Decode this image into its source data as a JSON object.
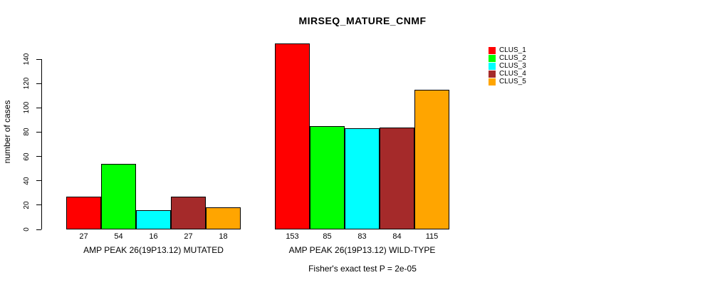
{
  "title": "MIRSEQ_MATURE_CNMF",
  "footer": "Fisher's exact test P = 2e-05",
  "y_axis": {
    "label": "number of cases",
    "ticks": [
      0,
      20,
      40,
      60,
      80,
      100,
      120,
      140
    ]
  },
  "legend": {
    "entries": [
      {
        "label": "CLUS_1",
        "color": "#ff0000"
      },
      {
        "label": "CLUS_2",
        "color": "#00ff00"
      },
      {
        "label": "CLUS_3",
        "color": "#00ffff"
      },
      {
        "label": "CLUS_4",
        "color": "#a52a2a"
      },
      {
        "label": "CLUS_5",
        "color": "#ffa500"
      }
    ]
  },
  "chart_data": {
    "type": "bar",
    "title": "MIRSEQ_MATURE_CNMF",
    "xlabel": "",
    "ylabel": "number of cases",
    "ylim": [
      0,
      140
    ],
    "yticks": [
      0,
      20,
      40,
      60,
      80,
      100,
      120,
      140
    ],
    "grid": false,
    "legend_position": "topright",
    "bar_value_labels_shown": true,
    "categories": [
      "AMP PEAK 26(19P13.12) MUTATED",
      "AMP PEAK 26(19P13.12) WILD-TYPE"
    ],
    "series": [
      {
        "name": "CLUS_1",
        "color": "#ff0000",
        "values": [
          27,
          153
        ]
      },
      {
        "name": "CLUS_2",
        "color": "#00ff00",
        "values": [
          54,
          85
        ]
      },
      {
        "name": "CLUS_3",
        "color": "#00ffff",
        "values": [
          16,
          83
        ]
      },
      {
        "name": "CLUS_4",
        "color": "#a52a2a",
        "values": [
          27,
          84
        ]
      },
      {
        "name": "CLUS_5",
        "color": "#ffa500",
        "values": [
          18,
          115
        ]
      }
    ],
    "annotation": "Fisher's exact test P = 2e-05"
  }
}
